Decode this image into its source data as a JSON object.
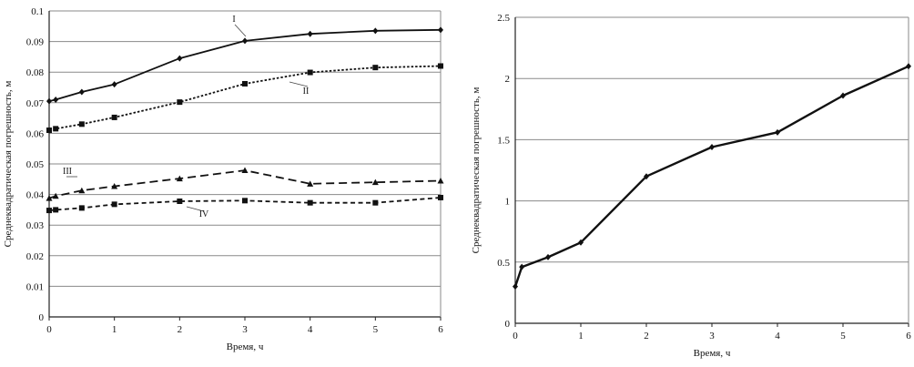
{
  "chart_data": [
    {
      "type": "line",
      "xlabel": "Время, ч",
      "ylabel": "Среднеквадратическая погрешность, м",
      "xlim": [
        0,
        6
      ],
      "ylim": [
        0,
        0.1
      ],
      "x_ticks": [
        "0",
        "1",
        "2",
        "3",
        "4",
        "5",
        "6"
      ],
      "y_ticks": [
        "0",
        "0.01",
        "0.02",
        "0.03",
        "0.04",
        "0.05",
        "0.06",
        "0.07",
        "0.08",
        "0.09",
        "0.1"
      ],
      "grid": "horizontal",
      "series": [
        {
          "name": "I",
          "line": "solid",
          "marker": "diamond",
          "x": [
            0,
            0.1,
            0.5,
            1,
            2,
            3,
            4,
            5,
            6
          ],
          "y": [
            0.0705,
            0.071,
            0.0735,
            0.076,
            0.0845,
            0.0902,
            0.0925,
            0.0935,
            0.0938
          ]
        },
        {
          "name": "II",
          "line": "dotted",
          "marker": "square",
          "x": [
            0,
            0.1,
            0.5,
            1,
            2,
            3,
            4,
            5,
            6
          ],
          "y": [
            0.061,
            0.0615,
            0.063,
            0.0652,
            0.0702,
            0.0762,
            0.0799,
            0.0815,
            0.082
          ]
        },
        {
          "name": "III",
          "line": "dashed",
          "marker": "triangle",
          "x": [
            0,
            0.1,
            0.5,
            1,
            2,
            3,
            4,
            5,
            6
          ],
          "y": [
            0.0388,
            0.0395,
            0.0413,
            0.0427,
            0.0452,
            0.0479,
            0.0435,
            0.044,
            0.0445
          ]
        },
        {
          "name": "IV",
          "line": "short-dash",
          "marker": "square",
          "x": [
            0,
            0.1,
            0.5,
            1,
            2,
            3,
            4,
            5,
            6
          ],
          "y": [
            0.0348,
            0.035,
            0.0356,
            0.0368,
            0.0378,
            0.038,
            0.0373,
            0.0373,
            0.039
          ]
        }
      ]
    },
    {
      "type": "line",
      "xlabel": "Время, ч",
      "ylabel": "Среднеквадратическая погрешность, м",
      "xlim": [
        0,
        6
      ],
      "ylim": [
        0,
        2.5
      ],
      "x_ticks": [
        "0",
        "1",
        "2",
        "3",
        "4",
        "5",
        "6"
      ],
      "y_ticks": [
        "0",
        "0.5",
        "1",
        "1.5",
        "2",
        "2.5"
      ],
      "grid": "horizontal",
      "series": [
        {
          "line": "solid",
          "marker": "diamond",
          "x": [
            0,
            0.1,
            0.5,
            1,
            2,
            3,
            4,
            5,
            6
          ],
          "y": [
            0.3,
            0.46,
            0.54,
            0.66,
            1.2,
            1.44,
            1.56,
            1.86,
            2.1
          ]
        }
      ]
    }
  ]
}
